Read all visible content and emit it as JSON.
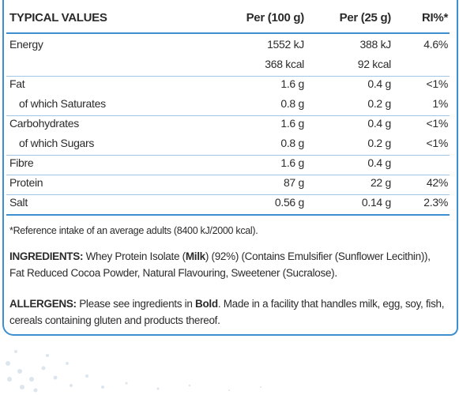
{
  "table": {
    "header": [
      "TYPICAL VALUES",
      "Per (100 g)",
      "Per (25 g)",
      "RI%*"
    ],
    "rows": [
      {
        "label": "Energy",
        "per100": [
          "1552 kJ",
          "368 kcal"
        ],
        "per25": [
          "388 kJ",
          "92 kcal"
        ],
        "ri": "4.6%"
      },
      {
        "label": "Fat",
        "per100": [
          "1.6 g"
        ],
        "per25": [
          "0.4 g"
        ],
        "ri": "<1%"
      },
      {
        "label": "of which Saturates",
        "per100": [
          "0.8 g"
        ],
        "per25": [
          "0.2 g"
        ],
        "ri": "1%",
        "sub": true
      },
      {
        "label": "Carbohydrates",
        "per100": [
          "1.6 g"
        ],
        "per25": [
          "0.4 g"
        ],
        "ri": "<1%"
      },
      {
        "label": "of which Sugars",
        "per100": [
          "0.8 g"
        ],
        "per25": [
          "0.2 g"
        ],
        "ri": "<1%",
        "sub": true
      },
      {
        "label": "Fibre",
        "per100": [
          "1.6 g"
        ],
        "per25": [
          "0.4 g"
        ]
      },
      {
        "label": "Protein",
        "per100": [
          "87 g"
        ],
        "per25": [
          "22 g"
        ],
        "ri": "42%"
      },
      {
        "label": "Salt",
        "per100": [
          "0.56 g"
        ],
        "per25": [
          "0.14 g"
        ],
        "ri": "2.3%"
      }
    ],
    "footnote": "*Reference intake of an average adults (8400 kJ/2000 kcal)."
  },
  "ingredients": [
    {
      "text": "INGREDIENTS:",
      "bold": true
    },
    {
      "text": " Whey Protein Isolate (",
      "bold": false
    },
    {
      "text": "Milk",
      "bold": true
    },
    {
      "text": ") (92%) (Contains Emulsifier (Sunflower Lecithin)), Fat Reduced Cocoa Powder, Natural Flavouring, Sweetener (Sucralose).",
      "bold": false
    }
  ],
  "allergens": [
    {
      "text": "ALLERGENS:",
      "bold": true
    },
    {
      "text": " Please see ingredients in ",
      "bold": false
    },
    {
      "text": "Bold",
      "bold": true
    },
    {
      "text": ". Made in a facility that handles milk, egg, soy, fish, cereals containing gluten and products thereof.",
      "bold": false
    }
  ]
}
